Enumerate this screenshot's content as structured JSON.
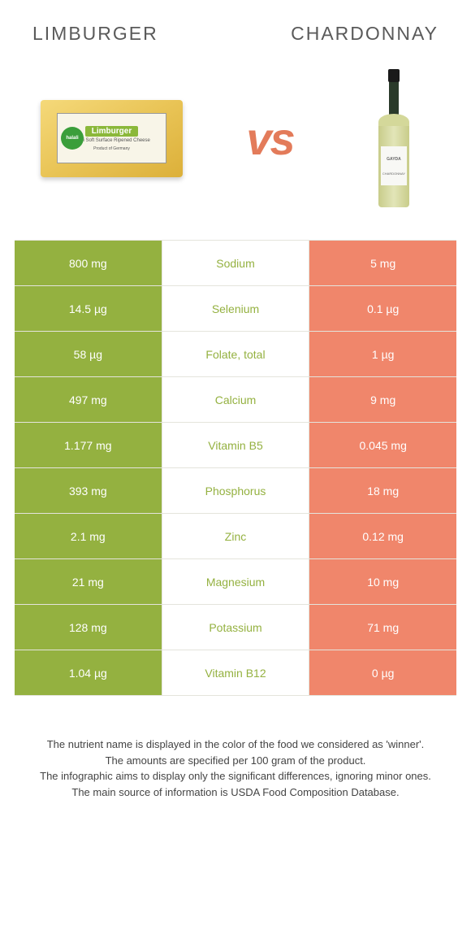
{
  "header": {
    "left_title": "Limburger",
    "right_title": "Chardonnay"
  },
  "vs_label": "vs",
  "cheese": {
    "brand": "Limburger",
    "badge": "halali",
    "sub1": "Semi Soft Surface Ripened Cheese",
    "sub2": "Product of Germany"
  },
  "bottle": {
    "brand": "GAYDA",
    "type": "CHARDONNAY"
  },
  "colors": {
    "left_bg": "#94b140",
    "right_bg": "#f0866b",
    "nutrient_left_color": "#94b140",
    "nutrient_right_color": "#f0866b",
    "row_border": "#e4e4dc"
  },
  "table": {
    "rows": [
      {
        "left": "800 mg",
        "nutrient": "Sodium",
        "right": "5 mg",
        "winner": "left"
      },
      {
        "left": "14.5 µg",
        "nutrient": "Selenium",
        "right": "0.1 µg",
        "winner": "left"
      },
      {
        "left": "58 µg",
        "nutrient": "Folate, total",
        "right": "1 µg",
        "winner": "left"
      },
      {
        "left": "497 mg",
        "nutrient": "Calcium",
        "right": "9 mg",
        "winner": "left"
      },
      {
        "left": "1.177 mg",
        "nutrient": "Vitamin B5",
        "right": "0.045 mg",
        "winner": "left"
      },
      {
        "left": "393 mg",
        "nutrient": "Phosphorus",
        "right": "18 mg",
        "winner": "left"
      },
      {
        "left": "2.1 mg",
        "nutrient": "Zinc",
        "right": "0.12 mg",
        "winner": "left"
      },
      {
        "left": "21 mg",
        "nutrient": "Magnesium",
        "right": "10 mg",
        "winner": "left"
      },
      {
        "left": "128 mg",
        "nutrient": "Potassium",
        "right": "71 mg",
        "winner": "left"
      },
      {
        "left": "1.04 µg",
        "nutrient": "Vitamin B12",
        "right": "0 µg",
        "winner": "left"
      }
    ]
  },
  "footer": {
    "line1": "The nutrient name is displayed in the color of the food we considered as 'winner'.",
    "line2": "The amounts are specified per 100 gram of the product.",
    "line3": "The infographic aims to display only the significant differences, ignoring minor ones.",
    "line4": "The main source of information is USDA Food Composition Database."
  }
}
